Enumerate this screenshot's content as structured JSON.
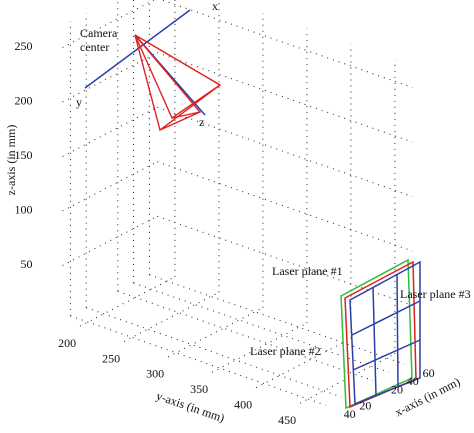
{
  "chart_data": {
    "type": "3d",
    "xlabel": "x-axis (in mm)",
    "ylabel": "y-axis (in mm)",
    "zlabel": "z-axis (in mm)",
    "xlim": [
      -50,
      70
    ],
    "ylim": [
      180,
      470
    ],
    "zlim": [
      0,
      270
    ],
    "xticks": [
      {
        "value": -40,
        "label": "40"
      },
      {
        "value": -20,
        "label": "20"
      },
      {
        "value": 20,
        "label": "20"
      },
      {
        "value": 40,
        "label": "40"
      },
      {
        "value": 60,
        "label": "60"
      }
    ],
    "yticks": [
      200,
      250,
      300,
      350,
      400,
      450
    ],
    "zticks": [
      50,
      100,
      150,
      200,
      250
    ],
    "grid": true,
    "camera_label": [
      "Camera",
      "center"
    ],
    "camera_axes": [
      "x",
      "y",
      "z"
    ],
    "planes": [
      {
        "name": "Laser plane #1",
        "color": "#33bb33"
      },
      {
        "name": "Laser plane #2",
        "color": "#e02020"
      },
      {
        "name": "Laser plane #3",
        "color": "#2b3fa8"
      }
    ]
  }
}
